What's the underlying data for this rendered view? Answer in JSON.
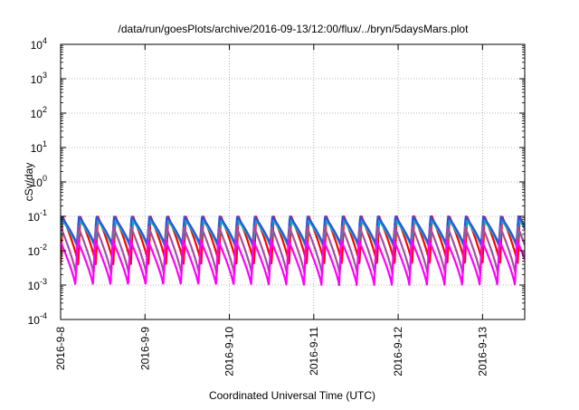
{
  "chart_data": {
    "type": "line",
    "title": "/data/run/goesPlots/archive/2016-09-13/12:00/flux/../bryn/5daysMars.plot",
    "xlabel": "Coordinated Universal Time (UTC)",
    "ylabel": "cSv/day",
    "x_tick_labels": [
      "2016-9-8",
      "2016-9-9",
      "2016-9-10",
      "2016-9-11",
      "2016-9-12",
      "2016-9-13"
    ],
    "y_ticks": [
      {
        "base": "10",
        "exp": "-4"
      },
      {
        "base": "10",
        "exp": "-3"
      },
      {
        "base": "10",
        "exp": "-2"
      },
      {
        "base": "10",
        "exp": "-1"
      },
      {
        "base": "10",
        "exp": "0"
      },
      {
        "base": "10",
        "exp": "1"
      },
      {
        "base": "10",
        "exp": "2"
      },
      {
        "base": "10",
        "exp": "3"
      },
      {
        "base": "10",
        "exp": "4"
      }
    ],
    "xlim": [
      "2016-09-08",
      "2016-09-13 12:00"
    ],
    "ylim": [
      0.0001,
      10000
    ],
    "y_scale": "log",
    "grid": true,
    "cycles_per_day": 4.8,
    "series_colors": [
      "#ff0000",
      "#00c0c0",
      "#3050e0",
      "#a050a0",
      "#ff00ff"
    ],
    "series": [
      {
        "color": "#ff0000",
        "peak": 0.1,
        "trough": 0.004
      },
      {
        "color": "#00c0c0",
        "peak": 0.08,
        "trough": 0.012
      },
      {
        "color": "#3050e0",
        "peak": 0.1,
        "trough": 0.015
      },
      {
        "color": "#a050a0",
        "peak": 0.05,
        "trough": 0.002
      },
      {
        "color": "#ff00ff",
        "peak": 0.02,
        "trough": 0.001
      }
    ]
  }
}
